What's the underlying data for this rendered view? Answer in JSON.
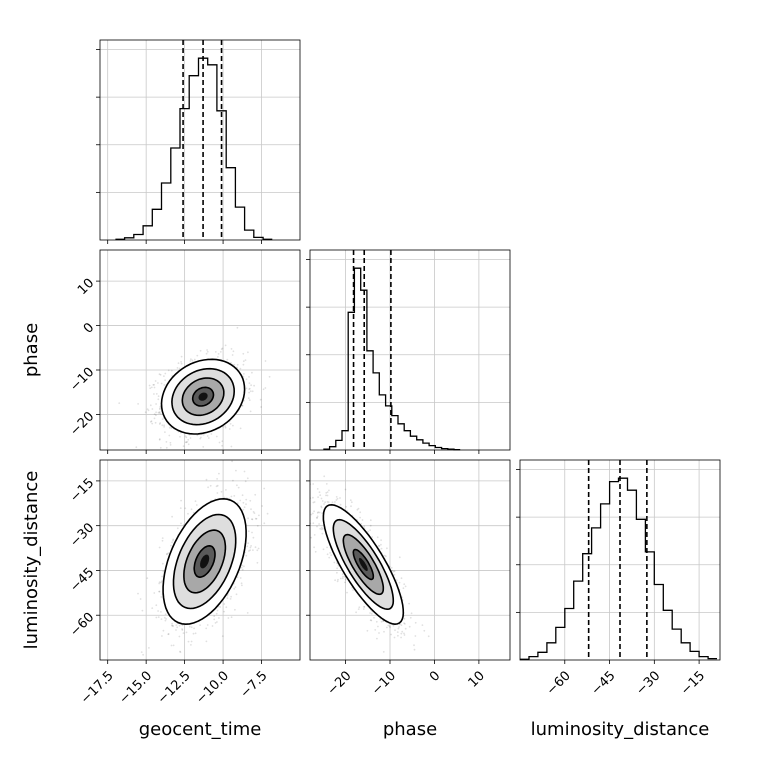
{
  "chart_data": {
    "type": "corner",
    "parameters": [
      "geocent_time",
      "phase",
      "luminosity_distance"
    ],
    "axis_labels": {
      "geocent_time": "geocent_time",
      "phase": "phase",
      "luminosity_distance": "luminosity_distance"
    },
    "ranges": {
      "geocent_time": [
        -18.0,
        -5.0
      ],
      "phase": [
        -28.0,
        17.0
      ],
      "luminosity_distance": [
        -75.0,
        -8.0
      ]
    },
    "ticks": {
      "geocent_time": [
        -17.5,
        -15.0,
        -12.5,
        -10.0,
        -7.5
      ],
      "phase": [
        -20,
        -10,
        0,
        10
      ],
      "luminosity_distance": [
        -60,
        -45,
        -30,
        -15
      ]
    },
    "tick_labels": {
      "geocent_time": [
        "−17.5",
        "−15.0",
        "−12.5",
        "−10.0",
        "−7.5"
      ],
      "phase": [
        "−20",
        "−10",
        "0",
        "10"
      ],
      "luminosity_distance": [
        "−60",
        "−45",
        "−30",
        "−15"
      ]
    },
    "quantiles": {
      "geocent_time": [
        -12.6,
        -11.3,
        -10.1
      ],
      "phase": [
        -18.2,
        -15.8,
        -9.8
      ],
      "luminosity_distance": [
        -52.0,
        -41.5,
        -32.5
      ]
    },
    "histograms": {
      "geocent_time": {
        "edges": [
          -17.0,
          -16.4,
          -15.8,
          -15.2,
          -14.6,
          -14.0,
          -13.4,
          -12.8,
          -12.2,
          -11.6,
          -11.0,
          -10.4,
          -9.8,
          -9.2,
          -8.6,
          -8.0,
          -7.4,
          -6.8
        ],
        "counts": [
          0.3,
          1.0,
          2.5,
          6.5,
          14.0,
          26.0,
          42.0,
          60.0,
          75.0,
          83.0,
          80.0,
          59.0,
          33.0,
          15.0,
          4.5,
          1.2,
          0.3
        ]
      },
      "phase": {
        "edges": [
          -25.0,
          -23.6,
          -22.2,
          -20.8,
          -19.4,
          -18.0,
          -16.6,
          -15.2,
          -13.8,
          -12.4,
          -11.0,
          -9.6,
          -8.2,
          -6.8,
          -5.4,
          -4.0,
          -2.6,
          -1.2,
          0.2,
          1.6,
          3.0,
          4.4,
          5.8
        ],
        "counts": [
          0.3,
          1.2,
          3.5,
          7.0,
          50.0,
          66.0,
          58.0,
          36.0,
          28.0,
          20.0,
          16.0,
          12.5,
          9.5,
          7.0,
          5.0,
          3.7,
          2.5,
          1.6,
          0.9,
          0.5,
          0.3,
          0.1
        ]
      },
      "luminosity_distance": {
        "edges": [
          -75.0,
          -72.0,
          -69.0,
          -66.0,
          -63.0,
          -60.0,
          -57.0,
          -54.0,
          -51.0,
          -48.0,
          -45.0,
          -42.0,
          -39.0,
          -36.0,
          -33.0,
          -30.0,
          -27.0,
          -24.0,
          -21.0,
          -18.0,
          -15.0,
          -12.0,
          -9.0
        ],
        "counts": [
          0.4,
          2.0,
          4.5,
          10.0,
          19.0,
          30.0,
          46.0,
          62.0,
          77.0,
          91.0,
          104.0,
          106.0,
          99.0,
          82.0,
          63.0,
          44.0,
          29.0,
          18.0,
          10.0,
          5.0,
          2.0,
          0.8
        ]
      }
    },
    "scatter_2d": [
      {
        "x": "geocent_time",
        "y": "phase",
        "center": [
          -11.3,
          -16.0
        ],
        "sd": [
          1.35,
          4.2
        ],
        "corr": 0.2
      },
      {
        "x": "geocent_time",
        "y": "luminosity_distance",
        "center": [
          -11.2,
          -42.0
        ],
        "sd": [
          1.35,
          10.5
        ],
        "corr": 0.45
      },
      {
        "x": "phase",
        "y": "luminosity_distance",
        "center": [
          -16.0,
          -43.0
        ],
        "sd": [
          4.5,
          10.0
        ],
        "corr": -0.8
      }
    ],
    "grid": true,
    "legend": "none"
  }
}
